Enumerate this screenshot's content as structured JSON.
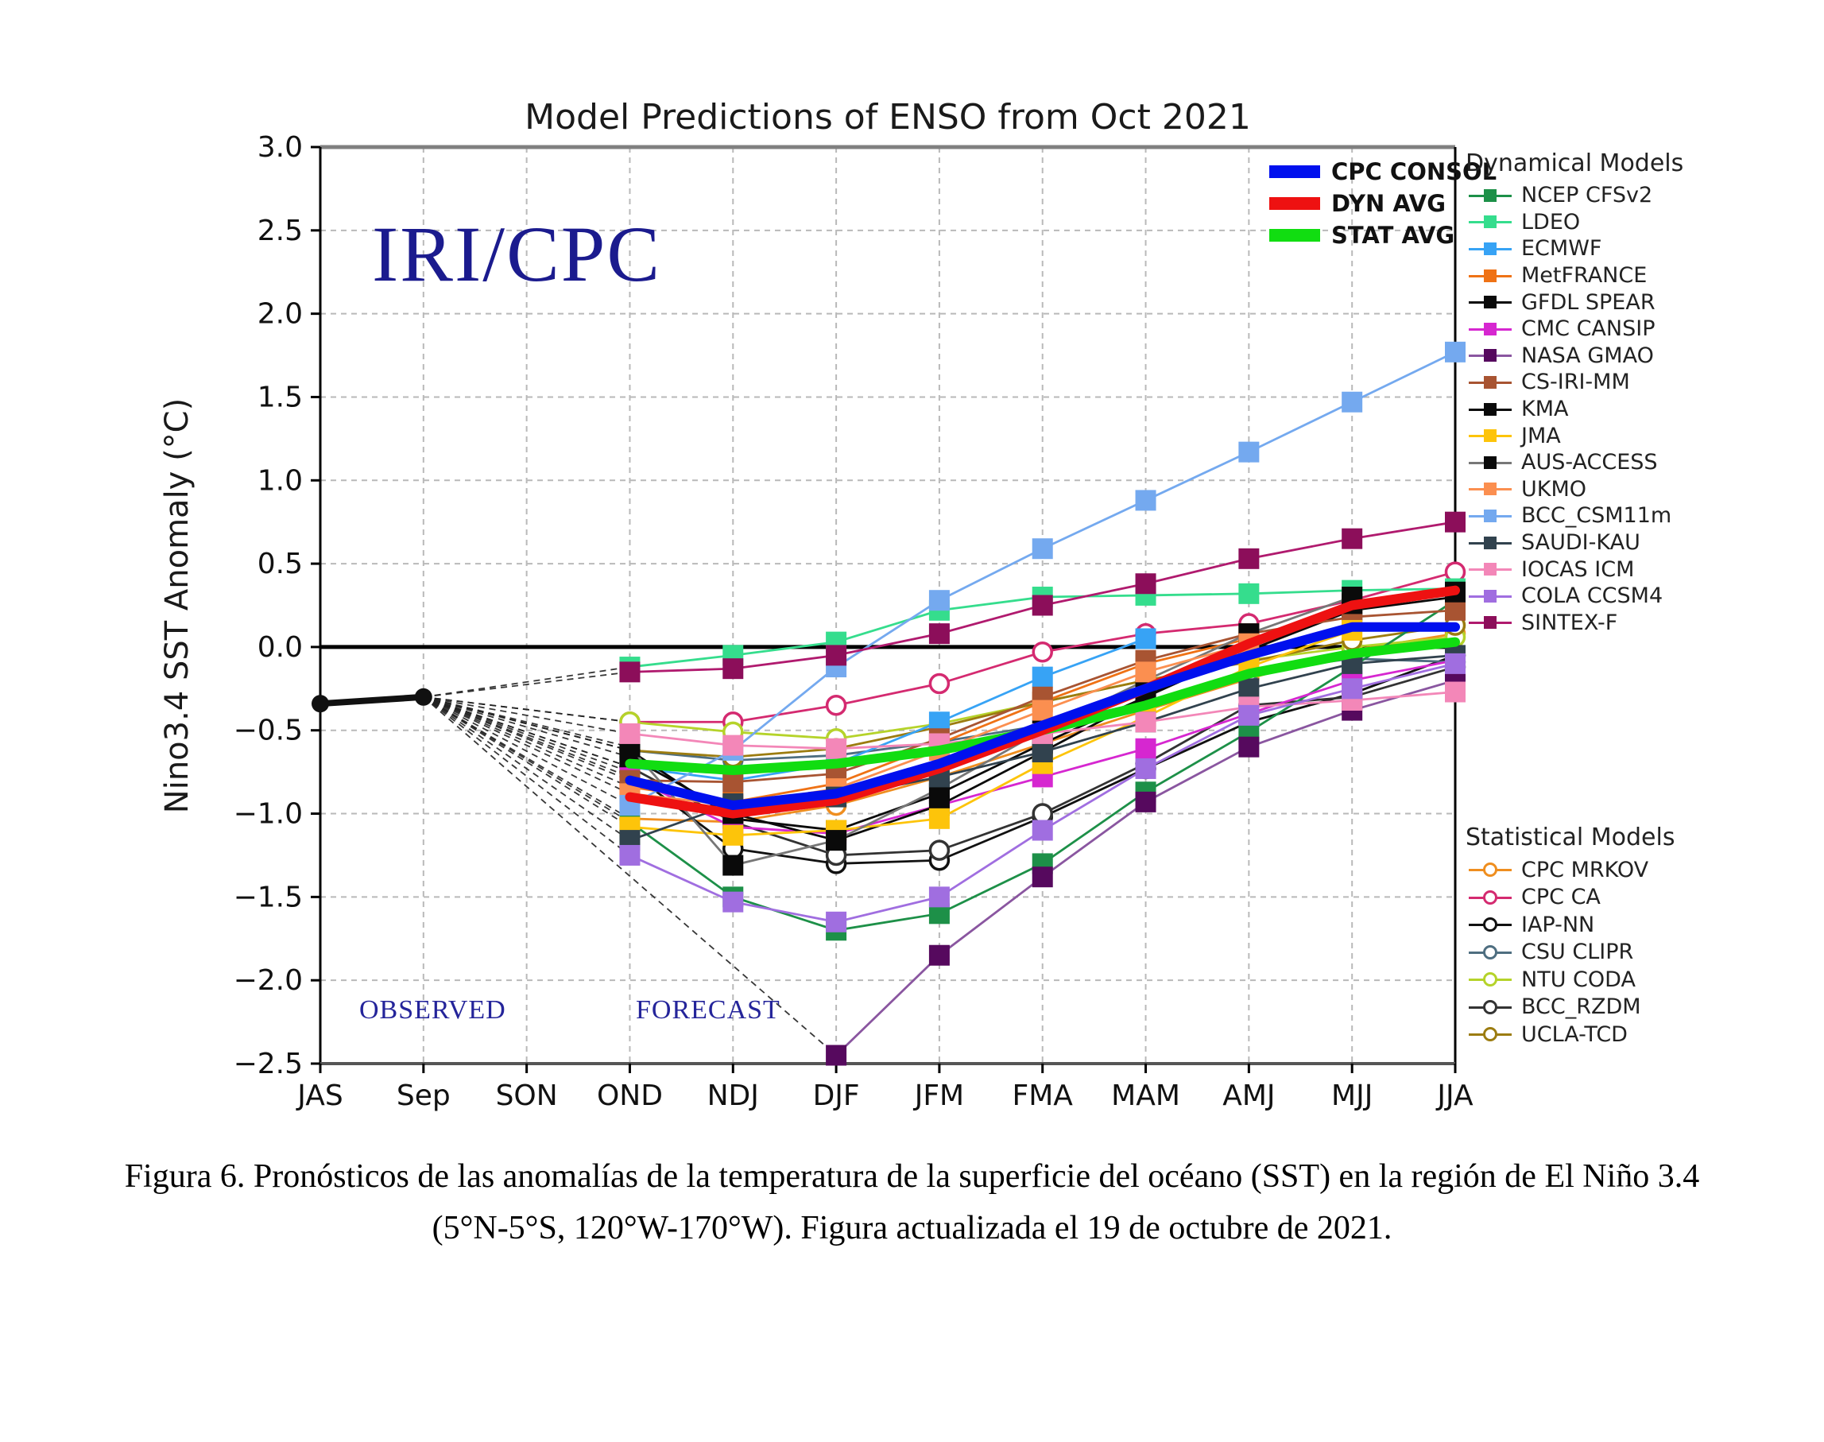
{
  "figure": {
    "watermark": "IRI/CPC",
    "observed_label": "OBSERVED",
    "forecast_label": "FORECAST",
    "caption_line1": "Figura 6. Pronósticos de las anomalías de la temperatura de la superficie del océano (SST) en la región de El Niño 3.4",
    "caption_line2": "(5°N-5°S, 120°W-170°W). Figura actualizada el 19 de octubre de 2021."
  },
  "chart_data": {
    "type": "line",
    "title": "Model Predictions of ENSO from Oct 2021",
    "ylabel": "Nino3.4 SST Anomaly (°C)",
    "xlabel": "",
    "ylim": [
      -2.5,
      3.0
    ],
    "yticks": [
      3.0,
      2.5,
      2.0,
      1.5,
      1.0,
      0.5,
      0.0,
      -0.5,
      -1.0,
      -1.5,
      -2.0,
      -2.5
    ],
    "categories": [
      "JAS",
      "Sep",
      "SON",
      "OND",
      "NDJ",
      "DJF",
      "JFM",
      "FMA",
      "MAM",
      "AMJ",
      "MJJ",
      "JJA"
    ],
    "forecast_start_index": 3,
    "grid": true,
    "legend_position": "right",
    "observed": {
      "categories": [
        "JAS",
        "Sep"
      ],
      "values": [
        -0.34,
        -0.3
      ],
      "color": "#111111"
    },
    "averages_legend": "top-right-inside",
    "averages": [
      {
        "name": "CPC CONSOL",
        "color": "#0010ee",
        "values": [
          -0.8,
          -0.95,
          -0.88,
          -0.7,
          -0.47,
          -0.25,
          -0.05,
          0.12,
          0.12
        ]
      },
      {
        "name": "DYN AVG",
        "color": "#ee1111",
        "values": [
          -0.9,
          -1.0,
          -0.92,
          -0.73,
          -0.5,
          -0.25,
          0.02,
          0.25,
          0.34
        ]
      },
      {
        "name": "STAT AVG",
        "color": "#11dd11",
        "values": [
          -0.7,
          -0.74,
          -0.7,
          -0.62,
          -0.5,
          -0.35,
          -0.16,
          -0.04,
          0.03
        ]
      }
    ],
    "dynamical_header": "Dynamical Models",
    "statistical_header": "Statistical Models",
    "dynamical": [
      {
        "name": "NCEP CFSv2",
        "color": "#1d9048",
        "values": [
          -1.05,
          -1.5,
          -1.7,
          -1.6,
          -1.3,
          -0.87,
          -0.51,
          -0.12,
          0.28
        ]
      },
      {
        "name": "LDEO",
        "color": "#35dd8d",
        "values": [
          -0.12,
          -0.05,
          0.03,
          0.22,
          0.3,
          0.31,
          0.32,
          0.34,
          0.35
        ]
      },
      {
        "name": "ECMWF",
        "color": "#37a3f5",
        "values": [
          -0.72,
          -0.8,
          -0.7,
          -0.45,
          -0.18,
          0.05,
          null,
          null,
          null
        ]
      },
      {
        "name": "MetFRANCE",
        "color": "#ef7215",
        "values": [
          -0.84,
          -0.93,
          -0.82,
          -0.58,
          -0.33,
          -0.1,
          0.05,
          null,
          null
        ]
      },
      {
        "name": "GFDL SPEAR",
        "color": "#0a0a0a",
        "values": [
          -0.62,
          -1.03,
          -1.1,
          -0.88,
          -0.58,
          -0.3,
          -0.02,
          0.22,
          0.3
        ]
      },
      {
        "name": "CMC CANSIP",
        "color": "#d627d0",
        "values": [
          -0.78,
          -1.08,
          -1.12,
          -0.95,
          -0.78,
          -0.61,
          -0.4,
          -0.2,
          -0.08
        ]
      },
      {
        "name": "NASA GMAO",
        "color": "#56095e",
        "line": "#8a56a0",
        "values": [
          null,
          null,
          -2.45,
          -1.85,
          -1.38,
          -0.93,
          -0.6,
          -0.38,
          -0.2
        ]
      },
      {
        "name": "CS-IRI-MM",
        "color": "#a85432",
        "values": [
          -0.8,
          -0.81,
          -0.76,
          -0.55,
          -0.3,
          -0.08,
          0.08,
          0.18,
          0.22
        ]
      },
      {
        "name": "KMA",
        "color": "#0a0a0a",
        "values": [
          -0.66,
          -1.0,
          -1.16,
          -0.95,
          -0.63,
          -0.3,
          0.02,
          0.26,
          0.33
        ]
      },
      {
        "name": "JMA",
        "color": "#fdc40a",
        "values": [
          -1.08,
          -1.13,
          -1.1,
          -1.03,
          -0.7,
          -0.42,
          -0.12,
          0.1,
          null
        ]
      },
      {
        "name": "AUS-ACCESS",
        "color": "#0a0a0a",
        "line": "#777777",
        "values": [
          -0.6,
          -1.31,
          -1.16,
          -0.85,
          -0.5,
          -0.2,
          0.08,
          0.3,
          null
        ]
      },
      {
        "name": "UKMO",
        "color": "#fb8f50",
        "values": [
          -0.88,
          -0.95,
          -0.85,
          -0.62,
          -0.38,
          -0.15,
          0.02,
          null,
          null
        ]
      },
      {
        "name": "BCC_CSM11m",
        "color": "#74a9ef",
        "values": [
          -0.95,
          -0.62,
          -0.12,
          0.28,
          0.59,
          0.88,
          1.17,
          1.47,
          1.77
        ]
      },
      {
        "name": "SAUDI-KAU",
        "color": "#31424e",
        "values": [
          -1.16,
          -0.94,
          -0.9,
          -0.78,
          -0.63,
          -0.45,
          -0.25,
          -0.1,
          -0.05
        ]
      },
      {
        "name": "IOCAS ICM",
        "color": "#f387b8",
        "values": [
          -0.52,
          -0.59,
          -0.61,
          -0.58,
          -0.52,
          -0.45,
          -0.36,
          -0.32,
          -0.27
        ]
      },
      {
        "name": "COLA CCSM4",
        "color": "#a06ee0",
        "values": [
          -1.25,
          -1.53,
          -1.65,
          -1.5,
          -1.1,
          -0.73,
          -0.41,
          -0.25,
          -0.1
        ]
      },
      {
        "name": "SINTEX-F",
        "color": "#8c0e5a",
        "line": "#b01a6e",
        "values": [
          -0.15,
          -0.13,
          -0.05,
          0.08,
          0.25,
          0.38,
          0.53,
          0.65,
          0.75
        ]
      }
    ],
    "statistical": [
      {
        "name": "CPC MRKOV",
        "color": "#ef8e1f",
        "values": [
          -1.03,
          -1.05,
          -0.95,
          -0.78,
          -0.58,
          -0.38,
          -0.19,
          -0.02,
          0.08
        ]
      },
      {
        "name": "CPC CA",
        "color": "#d42a70",
        "values": [
          -0.45,
          -0.45,
          -0.35,
          -0.22,
          -0.03,
          0.08,
          0.14,
          0.28,
          0.45
        ]
      },
      {
        "name": "IAP-NN",
        "color": "#111111",
        "values": [
          -0.75,
          -1.21,
          -1.3,
          -1.28,
          -1.02,
          -0.73,
          -0.45,
          -0.28,
          -0.05
        ]
      },
      {
        "name": "CSU CLIPR",
        "color": "#4e6e80",
        "values": [
          -0.62,
          -0.68,
          -0.65,
          -0.57,
          -0.47,
          -0.33,
          -0.15,
          -0.07,
          -0.09
        ]
      },
      {
        "name": "NTU CODA",
        "color": "#b5d32a",
        "values": [
          -0.45,
          -0.51,
          -0.55,
          -0.46,
          -0.33,
          -0.2,
          -0.08,
          0.0,
          0.06
        ]
      },
      {
        "name": "BCC_RZDM",
        "color": "#333333",
        "values": [
          -0.72,
          -1.05,
          -1.25,
          -1.22,
          -1.0,
          -0.7,
          -0.35,
          -0.3,
          -0.12
        ]
      },
      {
        "name": "UCLA-TCD",
        "color": "#9c7c10",
        "values": [
          -0.62,
          -0.66,
          -0.61,
          -0.48,
          -0.33,
          -0.2,
          -0.09,
          0.04,
          0.13
        ]
      }
    ]
  }
}
